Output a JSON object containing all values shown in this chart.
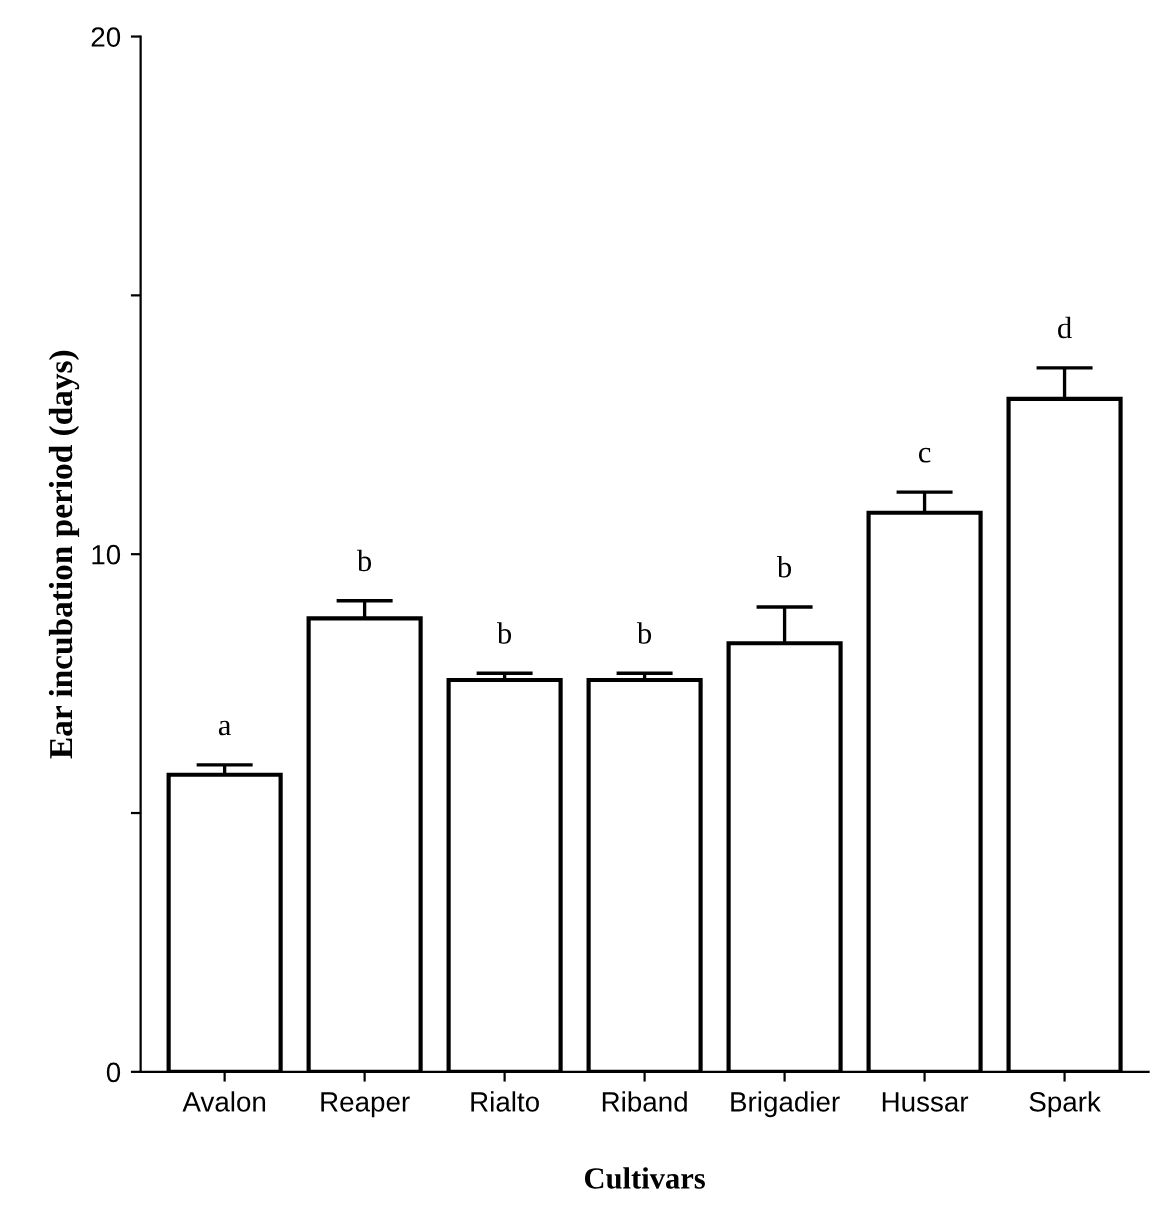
{
  "chart_data": {
    "type": "bar",
    "xlabel": "Cultivars",
    "ylabel": "Ear incubation period (days)",
    "categories": [
      "Avalon",
      "Reaper",
      "Rialto",
      "Riband",
      "Brigadier",
      "Hussar",
      "Spark"
    ],
    "values": [
      5.74,
      8.76,
      7.57,
      7.57,
      8.28,
      10.8,
      13.0
    ],
    "errors": [
      [
        5.74,
        5.93
      ],
      [
        8.76,
        9.1
      ],
      [
        7.57,
        7.7
      ],
      [
        7.57,
        7.7
      ],
      [
        8.28,
        8.98
      ],
      [
        10.8,
        11.2
      ],
      [
        13.0,
        13.6
      ]
    ],
    "color": "#ffffff",
    "ylim": [
      0,
      20
    ],
    "yticks": [
      0,
      {
        "value": 5,
        "label": null
      },
      10,
      {
        "value": 15,
        "label": null
      },
      20
    ],
    "annotations": [
      "a",
      "b",
      "b",
      "b",
      "b",
      "c",
      "d"
    ]
  }
}
